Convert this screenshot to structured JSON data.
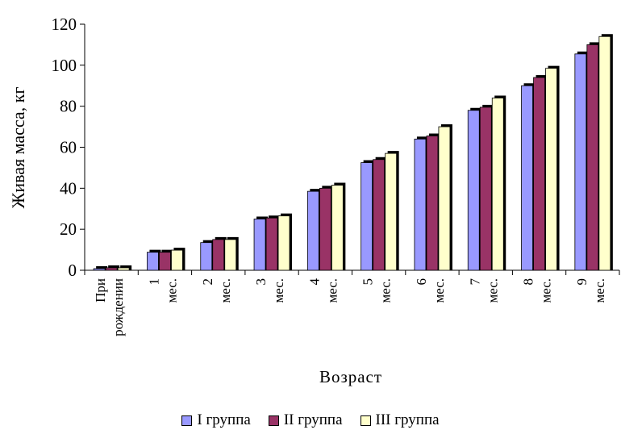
{
  "chart_data": {
    "type": "bar",
    "title": "",
    "xlabel": "Возраст",
    "ylabel": "Живая масса, кг",
    "ylim": [
      0,
      120
    ],
    "yticks": [
      0,
      20,
      40,
      60,
      80,
      100,
      120
    ],
    "grid": false,
    "legend_position": "bottom",
    "categories": [
      "При рождении",
      "1 мес.",
      "2 мес.",
      "3 мес.",
      "4 мес.",
      "5 мес.",
      "6 мес.",
      "7 мес.",
      "8 мес.",
      "9 мес."
    ],
    "series": [
      {
        "name": "I группа",
        "color": "#9999ff",
        "values": [
          0.8,
          8.8,
          13.5,
          25,
          38.5,
          52.5,
          64,
          78,
          90,
          105.5
        ]
      },
      {
        "name": "II группа",
        "color": "#993366",
        "values": [
          1.2,
          8.8,
          15,
          25.5,
          40,
          54,
          65.5,
          79.5,
          94,
          110
        ]
      },
      {
        "name": "III группа",
        "color": "#ffffcc",
        "values": [
          1.2,
          9.8,
          15,
          26.5,
          41.5,
          57,
          70,
          84,
          98.5,
          114
        ]
      }
    ]
  }
}
